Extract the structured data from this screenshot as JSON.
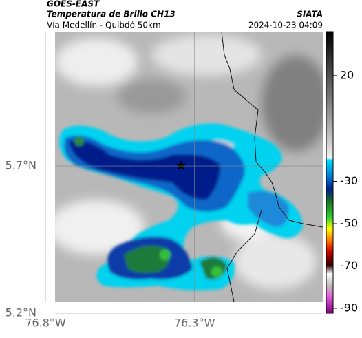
{
  "header": {
    "source": "GOES-EAST",
    "title": "Temperatura de Brillo CH13",
    "subtitle": "Vía Medellín - Quibdó 50km",
    "org": "SIATA",
    "timestamp": "2024-10-23 04:09"
  },
  "map": {
    "xlim": [
      -76.8,
      -75.87
    ],
    "ylim": [
      5.2,
      6.156
    ],
    "grid": true,
    "xticks": [
      {
        "value": -76.8,
        "label": "76.8°W"
      },
      {
        "value": -76.3,
        "label": "76.3°W"
      }
    ],
    "yticks": [
      {
        "value": 5.7,
        "label": "5.7°N"
      },
      {
        "value": 5.2,
        "label": "5.2°N"
      }
    ]
  },
  "colorbar": {
    "lim": [
      -92.3,
      40.8
    ],
    "ticks": [
      20,
      -30,
      -50,
      -70,
      -90
    ]
  }
}
